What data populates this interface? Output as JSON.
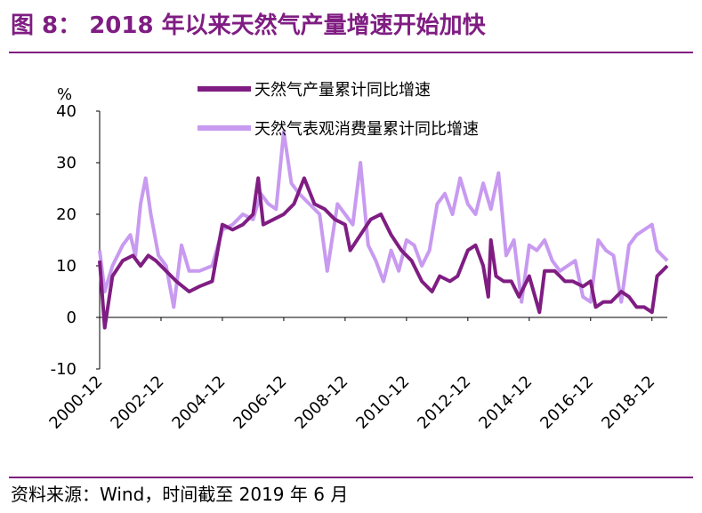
{
  "figure": {
    "title": "图 8：  2018 年以来天然气产量增速开始加快",
    "source": "资料来源：Wind，时间截至 2019 年 6 月"
  },
  "colors": {
    "accent": "#7f1d82",
    "series_production": "#7f1d82",
    "series_consumption": "#c89af0"
  },
  "chart_data": {
    "type": "line",
    "ylabel": "%",
    "ylim": [
      -10,
      40
    ],
    "yticks": [
      "40",
      "30",
      "20",
      "10",
      "0",
      "-10"
    ],
    "xticks": [
      "2000-12",
      "2002-12",
      "2004-12",
      "2006-12",
      "2008-12",
      "2010-12",
      "2012-12",
      "2014-12",
      "2016-12",
      "2018-12"
    ],
    "x_range": [
      "2000-12",
      "2019-06"
    ],
    "grid": false,
    "legend": "top-center",
    "series": [
      {
        "name": "天然气产量累计同比增速",
        "color": "#7f1d82",
        "points": [
          [
            "2000-12",
            11
          ],
          [
            "2001-02",
            -2
          ],
          [
            "2001-05",
            8
          ],
          [
            "2001-09",
            11
          ],
          [
            "2002-01",
            12
          ],
          [
            "2002-04",
            10
          ],
          [
            "2002-07",
            12
          ],
          [
            "2002-10",
            11
          ],
          [
            "2003-02",
            9
          ],
          [
            "2003-06",
            7
          ],
          [
            "2003-11",
            5
          ],
          [
            "2004-03",
            6
          ],
          [
            "2004-08",
            7
          ],
          [
            "2004-12",
            18
          ],
          [
            "2005-04",
            17
          ],
          [
            "2005-08",
            18
          ],
          [
            "2005-12",
            20
          ],
          [
            "2006-02",
            27
          ],
          [
            "2006-04",
            18
          ],
          [
            "2006-08",
            19
          ],
          [
            "2006-12",
            20
          ],
          [
            "2007-04",
            22
          ],
          [
            "2007-08",
            27
          ],
          [
            "2007-12",
            22
          ],
          [
            "2008-04",
            21
          ],
          [
            "2008-08",
            19
          ],
          [
            "2008-12",
            18
          ],
          [
            "2009-02",
            13
          ],
          [
            "2009-06",
            16
          ],
          [
            "2009-10",
            19
          ],
          [
            "2010-02",
            20
          ],
          [
            "2010-06",
            16
          ],
          [
            "2010-10",
            13
          ],
          [
            "2011-02",
            11
          ],
          [
            "2011-06",
            7
          ],
          [
            "2011-10",
            5
          ],
          [
            "2012-01",
            8
          ],
          [
            "2012-05",
            7
          ],
          [
            "2012-08",
            8
          ],
          [
            "2012-12",
            13
          ],
          [
            "2013-03",
            14
          ],
          [
            "2013-06",
            10
          ],
          [
            "2013-08",
            4
          ],
          [
            "2013-09",
            15
          ],
          [
            "2013-11",
            8
          ],
          [
            "2014-02",
            7
          ],
          [
            "2014-05",
            7
          ],
          [
            "2014-08",
            4
          ],
          [
            "2014-12",
            8
          ],
          [
            "2015-04",
            1
          ],
          [
            "2015-06",
            9
          ],
          [
            "2015-10",
            9
          ],
          [
            "2016-02",
            7
          ],
          [
            "2016-05",
            7
          ],
          [
            "2016-09",
            6
          ],
          [
            "2016-12",
            7
          ],
          [
            "2017-02",
            2
          ],
          [
            "2017-05",
            3
          ],
          [
            "2017-08",
            3
          ],
          [
            "2017-12",
            5
          ],
          [
            "2018-03",
            4
          ],
          [
            "2018-06",
            2
          ],
          [
            "2018-09",
            2
          ],
          [
            "2018-12",
            1
          ],
          [
            "2019-02",
            8
          ],
          [
            "2019-04",
            9
          ],
          [
            "2019-06",
            10
          ]
        ]
      },
      {
        "name": "天然气表观消费量累计同比增速",
        "color": "#c89af0",
        "points": [
          [
            "2000-12",
            13
          ],
          [
            "2001-02",
            5
          ],
          [
            "2001-05",
            10
          ],
          [
            "2001-09",
            14
          ],
          [
            "2001-12",
            16
          ],
          [
            "2002-02",
            12
          ],
          [
            "2002-04",
            22
          ],
          [
            "2002-06",
            27
          ],
          [
            "2002-08",
            20
          ],
          [
            "2002-11",
            12
          ],
          [
            "2003-02",
            10
          ],
          [
            "2003-05",
            2
          ],
          [
            "2003-08",
            14
          ],
          [
            "2003-11",
            9
          ],
          [
            "2004-03",
            9
          ],
          [
            "2004-08",
            10
          ],
          [
            "2004-12",
            17
          ],
          [
            "2005-04",
            18
          ],
          [
            "2005-08",
            20
          ],
          [
            "2005-12",
            19
          ],
          [
            "2006-03",
            24
          ],
          [
            "2006-06",
            22
          ],
          [
            "2006-09",
            21
          ],
          [
            "2006-12",
            36
          ],
          [
            "2007-03",
            26
          ],
          [
            "2007-06",
            24
          ],
          [
            "2007-10",
            22
          ],
          [
            "2008-02",
            20
          ],
          [
            "2008-05",
            9
          ],
          [
            "2008-09",
            22
          ],
          [
            "2008-12",
            20
          ],
          [
            "2009-03",
            18
          ],
          [
            "2009-06",
            30
          ],
          [
            "2009-09",
            14
          ],
          [
            "2009-12",
            11
          ],
          [
            "2010-03",
            7
          ],
          [
            "2010-06",
            13
          ],
          [
            "2010-09",
            9
          ],
          [
            "2010-12",
            15
          ],
          [
            "2011-03",
            14
          ],
          [
            "2011-06",
            10
          ],
          [
            "2011-09",
            13
          ],
          [
            "2011-12",
            22
          ],
          [
            "2012-03",
            24
          ],
          [
            "2012-06",
            20
          ],
          [
            "2012-09",
            27
          ],
          [
            "2012-12",
            22
          ],
          [
            "2013-03",
            20
          ],
          [
            "2013-06",
            26
          ],
          [
            "2013-09",
            21
          ],
          [
            "2013-12",
            28
          ],
          [
            "2014-03",
            12
          ],
          [
            "2014-06",
            15
          ],
          [
            "2014-09",
            3
          ],
          [
            "2014-12",
            14
          ],
          [
            "2015-03",
            13
          ],
          [
            "2015-06",
            15
          ],
          [
            "2015-09",
            11
          ],
          [
            "2015-12",
            9
          ],
          [
            "2016-03",
            10
          ],
          [
            "2016-06",
            11
          ],
          [
            "2016-09",
            4
          ],
          [
            "2016-12",
            3
          ],
          [
            "2017-03",
            15
          ],
          [
            "2017-06",
            13
          ],
          [
            "2017-09",
            12
          ],
          [
            "2017-12",
            3
          ],
          [
            "2018-03",
            14
          ],
          [
            "2018-06",
            16
          ],
          [
            "2018-09",
            17
          ],
          [
            "2018-12",
            18
          ],
          [
            "2019-02",
            13
          ],
          [
            "2019-04",
            12
          ],
          [
            "2019-06",
            11
          ]
        ]
      }
    ]
  }
}
